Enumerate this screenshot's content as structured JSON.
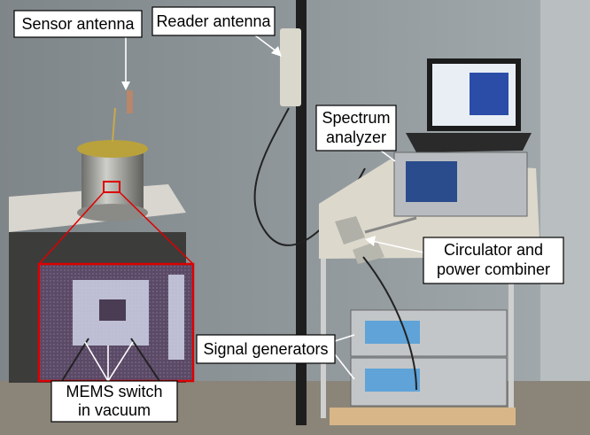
{
  "labels": {
    "sensor_antenna": "Sensor antenna",
    "reader_antenna": "Reader antenna",
    "spectrum_analyzer": [
      "Spectrum",
      "analyzer"
    ],
    "circulator": [
      "Circulator and",
      "power combiner"
    ],
    "signal_generators": "Signal generators",
    "mems_switch": [
      "MEMS switch",
      "in vacuum"
    ]
  }
}
